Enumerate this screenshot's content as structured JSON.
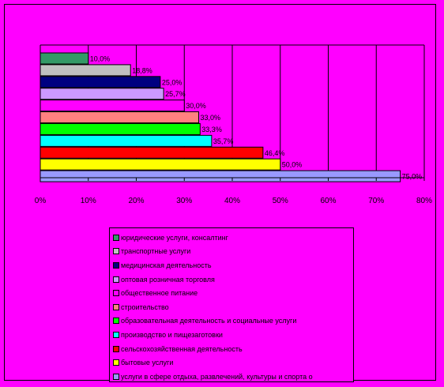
{
  "chart_data": {
    "type": "bar",
    "orientation": "horizontal",
    "xlim": [
      0,
      80
    ],
    "xticks": [
      "0%",
      "10%",
      "20%",
      "30%",
      "40%",
      "50%",
      "60%",
      "70%",
      "80%"
    ],
    "grid": true,
    "legend_position": "bottom",
    "categories": [
      {
        "name": "юридические услуги, консалтинг",
        "value": 10.0,
        "label": "10,0%",
        "color": "#339966"
      },
      {
        "name": "транспортные услуги",
        "value": 18.8,
        "label": "18,8%",
        "color": "#c0c0c0"
      },
      {
        "name": "медицинская деятельность",
        "value": 25.0,
        "label": "25,0%",
        "color": "#000080"
      },
      {
        "name": "оптовая розничная торговля",
        "value": 25.7,
        "label": "25,7%",
        "color": "#cc99ff"
      },
      {
        "name": "общественное питание",
        "value": 30.0,
        "label": "30,0%",
        "color": "#ff00ff"
      },
      {
        "name": "строительство",
        "value": 33.0,
        "label": "33,0%",
        "color": "#ff8080"
      },
      {
        "name": "образовательная деятельность и социальные услуги",
        "value": 33.3,
        "label": "33,3%",
        "color": "#00ff00"
      },
      {
        "name": "производство и пищезаготовки",
        "value": 35.7,
        "label": "35,7%",
        "color": "#00ffff"
      },
      {
        "name": "сельскохозяйственная деятельность",
        "value": 46.4,
        "label": "46,4%",
        "color": "#ff0000"
      },
      {
        "name": "бытовые услуги",
        "value": 50.0,
        "label": "50,0%",
        "color": "#ffff00"
      },
      {
        "name": "услуги в сфере отдыха, развлечений, культуры и спорта о",
        "value": 75.0,
        "label": "75,0%",
        "color": "#9999ff"
      }
    ]
  }
}
